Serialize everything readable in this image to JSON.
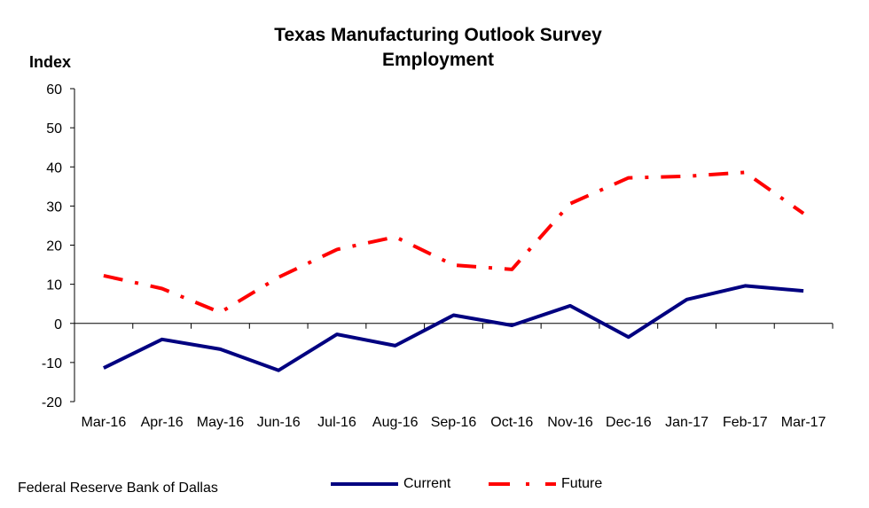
{
  "chart_data": {
    "type": "line",
    "title": "Texas Manufacturing Outlook Survey",
    "subtitle": "Employment",
    "ylabel": "Index",
    "xlabel": "",
    "ylim": [
      -20,
      60
    ],
    "yticks": [
      60,
      50,
      40,
      30,
      20,
      10,
      0,
      -10,
      -20
    ],
    "categories": [
      "Mar-16",
      "Apr-16",
      "May-16",
      "Jun-16",
      "Jul-16",
      "Aug-16",
      "Sep-16",
      "Oct-16",
      "Nov-16",
      "Dec-16",
      "Jan-17",
      "Feb-17",
      "Mar-17"
    ],
    "series": [
      {
        "name": "Current",
        "color": "#000080",
        "style": "solid",
        "values": [
          -11.4,
          -4.1,
          -6.6,
          -12.0,
          -2.8,
          -5.7,
          2.1,
          -0.5,
          4.5,
          -3.5,
          6.1,
          9.6,
          8.3
        ]
      },
      {
        "name": "Future",
        "color": "#ff0000",
        "style": "dash-dot",
        "values": [
          12.2,
          8.9,
          2.8,
          11.8,
          18.9,
          22.1,
          14.9,
          13.8,
          30.6,
          37.2,
          37.6,
          38.6,
          28.1
        ]
      }
    ],
    "grid": false,
    "legend_position": "bottom"
  },
  "footer": {
    "source": "Federal Reserve Bank of Dallas"
  }
}
